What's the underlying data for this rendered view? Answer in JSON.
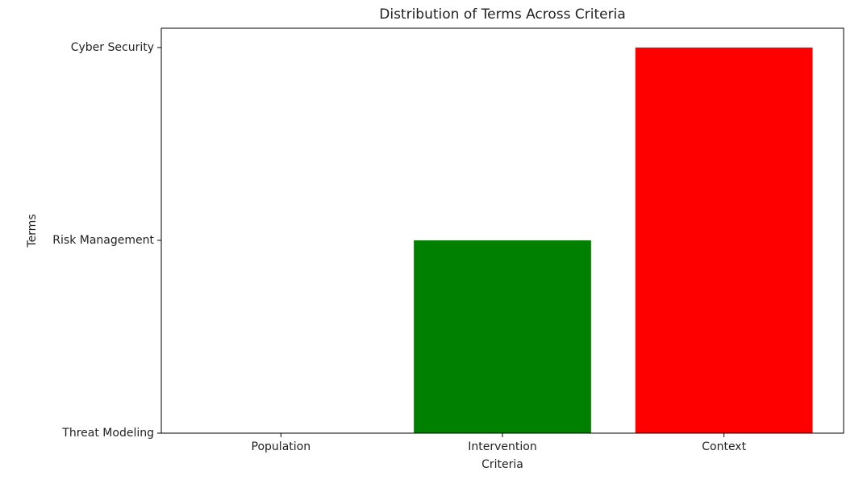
{
  "chart_data": {
    "type": "bar",
    "title": "Distribution of Terms Across Criteria",
    "x_label": "Criteria",
    "y_label": "Terms",
    "categories": [
      "Population",
      "Intervention",
      "Context"
    ],
    "values": [
      0,
      1,
      2
    ],
    "colors": [
      "#0000ff",
      "#008000",
      "#ff0000"
    ],
    "ylim": [
      0,
      2.1
    ],
    "yticks": [
      {
        "value": 0,
        "label": "Threat Modeling"
      },
      {
        "value": 1,
        "label": "Risk Management"
      },
      {
        "value": 2,
        "label": "Cyber Security"
      }
    ],
    "grid": false
  }
}
